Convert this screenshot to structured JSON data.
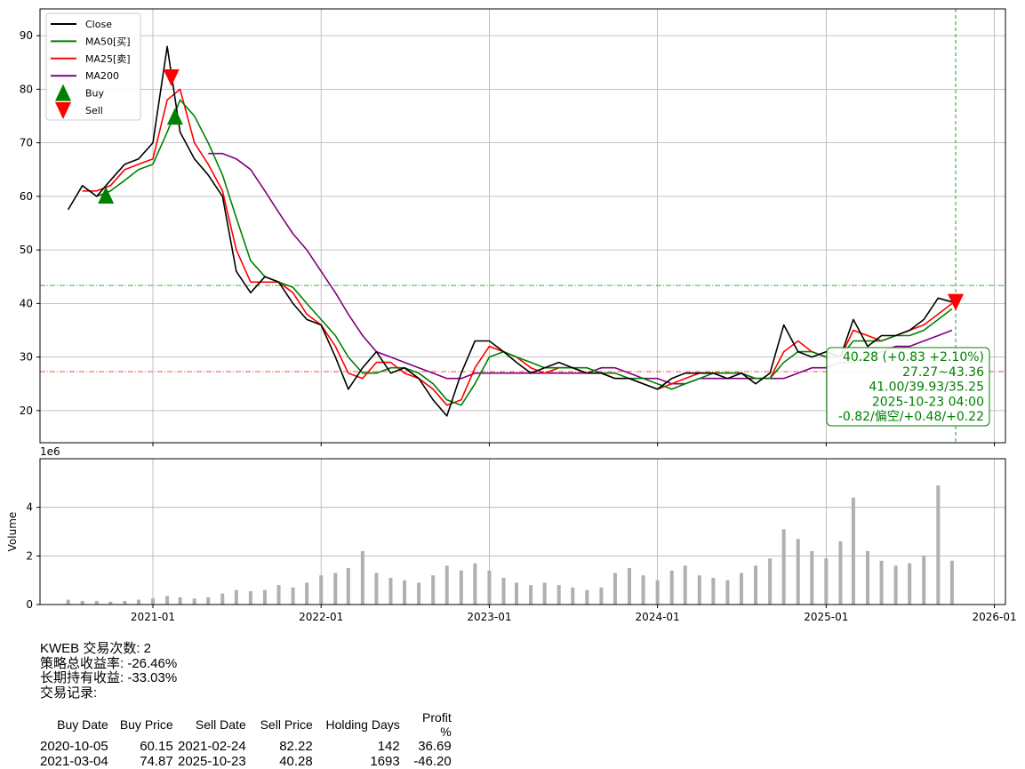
{
  "chart_data": {
    "type": "line",
    "price_panel": {
      "ylim": [
        14,
        95
      ],
      "yticks": [
        "20",
        "30",
        "40",
        "50",
        "60",
        "70",
        "80",
        "90"
      ],
      "ytick_values": [
        20,
        30,
        40,
        50,
        60,
        70,
        80,
        90
      ],
      "grid": true,
      "legend_position": "upper left",
      "legend": [
        {
          "label": "Close",
          "color": "#000000",
          "kind": "line"
        },
        {
          "label": "MA50[买]",
          "color": "#008000",
          "kind": "line"
        },
        {
          "label": "MA25[卖]",
          "color": "#ff0000",
          "kind": "line"
        },
        {
          "label": "MA200",
          "color": "#800080",
          "kind": "line"
        },
        {
          "label": "Buy",
          "color": "#008000",
          "kind": "triangle-up"
        },
        {
          "label": "Sell",
          "color": "#ff0000",
          "kind": "triangle-down"
        }
      ],
      "x_dates": [
        "2020-07",
        "2020-08",
        "2020-09",
        "2020-10",
        "2020-11",
        "2020-12",
        "2021-01",
        "2021-02",
        "2021-03",
        "2021-04",
        "2021-05",
        "2021-06",
        "2021-07",
        "2021-08",
        "2021-09",
        "2021-10",
        "2021-11",
        "2021-12",
        "2022-01",
        "2022-02",
        "2022-03",
        "2022-04",
        "2022-05",
        "2022-06",
        "2022-07",
        "2022-08",
        "2022-09",
        "2022-10",
        "2022-11",
        "2022-12",
        "2023-01",
        "2023-02",
        "2023-03",
        "2023-04",
        "2023-05",
        "2023-06",
        "2023-07",
        "2023-08",
        "2023-09",
        "2023-10",
        "2023-11",
        "2023-12",
        "2024-01",
        "2024-02",
        "2024-03",
        "2024-04",
        "2024-05",
        "2024-06",
        "2024-07",
        "2024-08",
        "2024-09",
        "2024-10",
        "2024-11",
        "2024-12",
        "2025-01",
        "2025-02",
        "2025-03",
        "2025-04",
        "2025-05",
        "2025-06",
        "2025-07",
        "2025-08",
        "2025-09",
        "2025-10"
      ],
      "series": [
        {
          "name": "Close",
          "color": "#000000",
          "values": [
            57.5,
            62,
            60,
            63,
            66,
            67,
            70,
            88,
            72,
            67,
            64,
            60,
            46,
            42,
            45,
            44,
            40,
            37,
            36,
            30,
            24,
            28,
            31,
            27,
            28,
            26,
            22,
            19,
            27,
            33,
            33,
            31,
            29,
            27,
            28,
            29,
            28,
            27,
            27,
            26,
            26,
            25,
            24,
            26,
            27,
            27,
            27,
            26,
            27,
            25,
            27,
            36,
            31,
            30,
            31,
            30,
            37,
            32,
            34,
            34,
            35,
            37,
            41,
            40.28
          ]
        },
        {
          "name": "MA50[买]",
          "color": "#008000",
          "values": [
            null,
            null,
            60,
            61,
            63,
            65,
            66,
            72,
            78,
            75,
            70,
            64,
            56,
            48,
            45,
            44,
            43,
            40,
            37,
            34,
            30,
            27,
            27,
            28,
            28,
            27,
            25,
            22,
            21,
            25,
            30,
            31,
            30,
            29,
            28,
            28,
            28,
            28,
            27,
            27,
            26,
            26,
            25,
            24,
            25,
            26,
            27,
            27,
            27,
            26,
            26,
            29,
            31,
            31,
            30,
            30,
            33,
            33,
            33,
            34,
            34,
            35,
            37,
            39
          ]
        },
        {
          "name": "MA25[卖]",
          "color": "#ff0000",
          "values": [
            null,
            61,
            61,
            62,
            65,
            66,
            67,
            78,
            80,
            70,
            66,
            61,
            50,
            44,
            44,
            44,
            42,
            38,
            36,
            32,
            27,
            26,
            29,
            29,
            27,
            26,
            24,
            21,
            22,
            28,
            32,
            31,
            30,
            28,
            27,
            28,
            28,
            27,
            27,
            26,
            26,
            25,
            24,
            25,
            26,
            27,
            27,
            27,
            27,
            26,
            26,
            31,
            33,
            31,
            30,
            30,
            35,
            34,
            33,
            34,
            35,
            36,
            38,
            40
          ]
        },
        {
          "name": "MA200",
          "color": "#800080",
          "values": [
            null,
            null,
            null,
            null,
            null,
            null,
            null,
            null,
            null,
            null,
            68,
            68,
            67,
            65,
            61,
            57,
            53,
            50,
            46,
            42,
            38,
            34,
            31,
            30,
            29,
            28,
            27,
            26,
            26,
            27,
            27,
            27,
            27,
            27,
            27,
            27,
            27,
            27,
            28,
            28,
            27,
            26,
            26,
            25,
            25,
            26,
            26,
            26,
            26,
            26,
            26,
            26,
            27,
            28,
            28,
            29,
            29,
            30,
            31,
            32,
            32,
            33,
            34,
            35
          ]
        }
      ],
      "buy_markers": [
        {
          "date": "2020-10-05",
          "price": 60.15
        },
        {
          "date": "2021-03-04",
          "price": 74.87
        }
      ],
      "sell_markers": [
        {
          "date": "2021-02-24",
          "price": 82.22
        },
        {
          "date": "2025-10-23",
          "price": 40.28
        }
      ],
      "hlines": [
        {
          "value": 43.36,
          "color": "#008000",
          "style": "dashdot"
        },
        {
          "value": 27.27,
          "color": "#ff0000",
          "style": "dashdot"
        }
      ],
      "vline": {
        "date": "2025-10-23",
        "color": "#008000",
        "style": "dashed"
      },
      "annotation_lines": [
        "40.28 (+0.83 +2.10%)",
        "27.27~43.36",
        "41.00/39.93/35.25",
        "2025-10-23 04:00",
        "-0.82/偏空/+0.48/+0.22"
      ]
    },
    "volume_panel": {
      "ylabel": "Volume",
      "offset_label": "1e6",
      "ylim": [
        0,
        6
      ],
      "yticks": [
        "0",
        "2",
        "4"
      ],
      "ytick_values": [
        0,
        2,
        4
      ],
      "bar_color": "#b0b0b0",
      "monthly_peaks": [
        0.2,
        0.15,
        0.15,
        0.12,
        0.15,
        0.2,
        0.25,
        0.35,
        0.3,
        0.25,
        0.3,
        0.45,
        0.6,
        0.55,
        0.6,
        0.8,
        0.7,
        0.9,
        1.2,
        1.3,
        1.5,
        2.2,
        1.3,
        1.1,
        1.0,
        0.9,
        1.2,
        1.6,
        1.4,
        1.7,
        1.4,
        1.1,
        0.9,
        0.8,
        0.9,
        0.8,
        0.7,
        0.6,
        0.7,
        1.3,
        1.5,
        1.2,
        1.0,
        1.4,
        1.6,
        1.2,
        1.1,
        1.0,
        1.3,
        1.6,
        1.9,
        3.1,
        2.7,
        2.2,
        1.9,
        2.6,
        4.4,
        2.2,
        1.8,
        1.6,
        1.7,
        2.0,
        4.9,
        1.8
      ]
    },
    "x_ticks": [
      "2021-01",
      "2022-01",
      "2023-01",
      "2024-01",
      "2025-01",
      "2026-01"
    ],
    "x_tick_dates": [
      "2021-01",
      "2022-01",
      "2023-01",
      "2024-01",
      "2025-01",
      "2026-01"
    ]
  },
  "summary": {
    "line1": "KWEB 交易次数: 2",
    "line2": "策略总收益率: -26.46%",
    "line3": "长期持有收益: -33.03%",
    "line4": "交易记录:"
  },
  "table": {
    "headers": [
      "Buy Date",
      "Buy Price",
      "Sell Date",
      "Sell Price",
      "Holding Days",
      "Profit %"
    ],
    "rows": [
      [
        "2020-10-05",
        "60.15",
        "2021-02-24",
        "82.22",
        "142",
        "36.69"
      ],
      [
        "2021-03-04",
        "74.87",
        "2025-10-23",
        "40.28",
        "1693",
        "-46.20"
      ]
    ]
  }
}
